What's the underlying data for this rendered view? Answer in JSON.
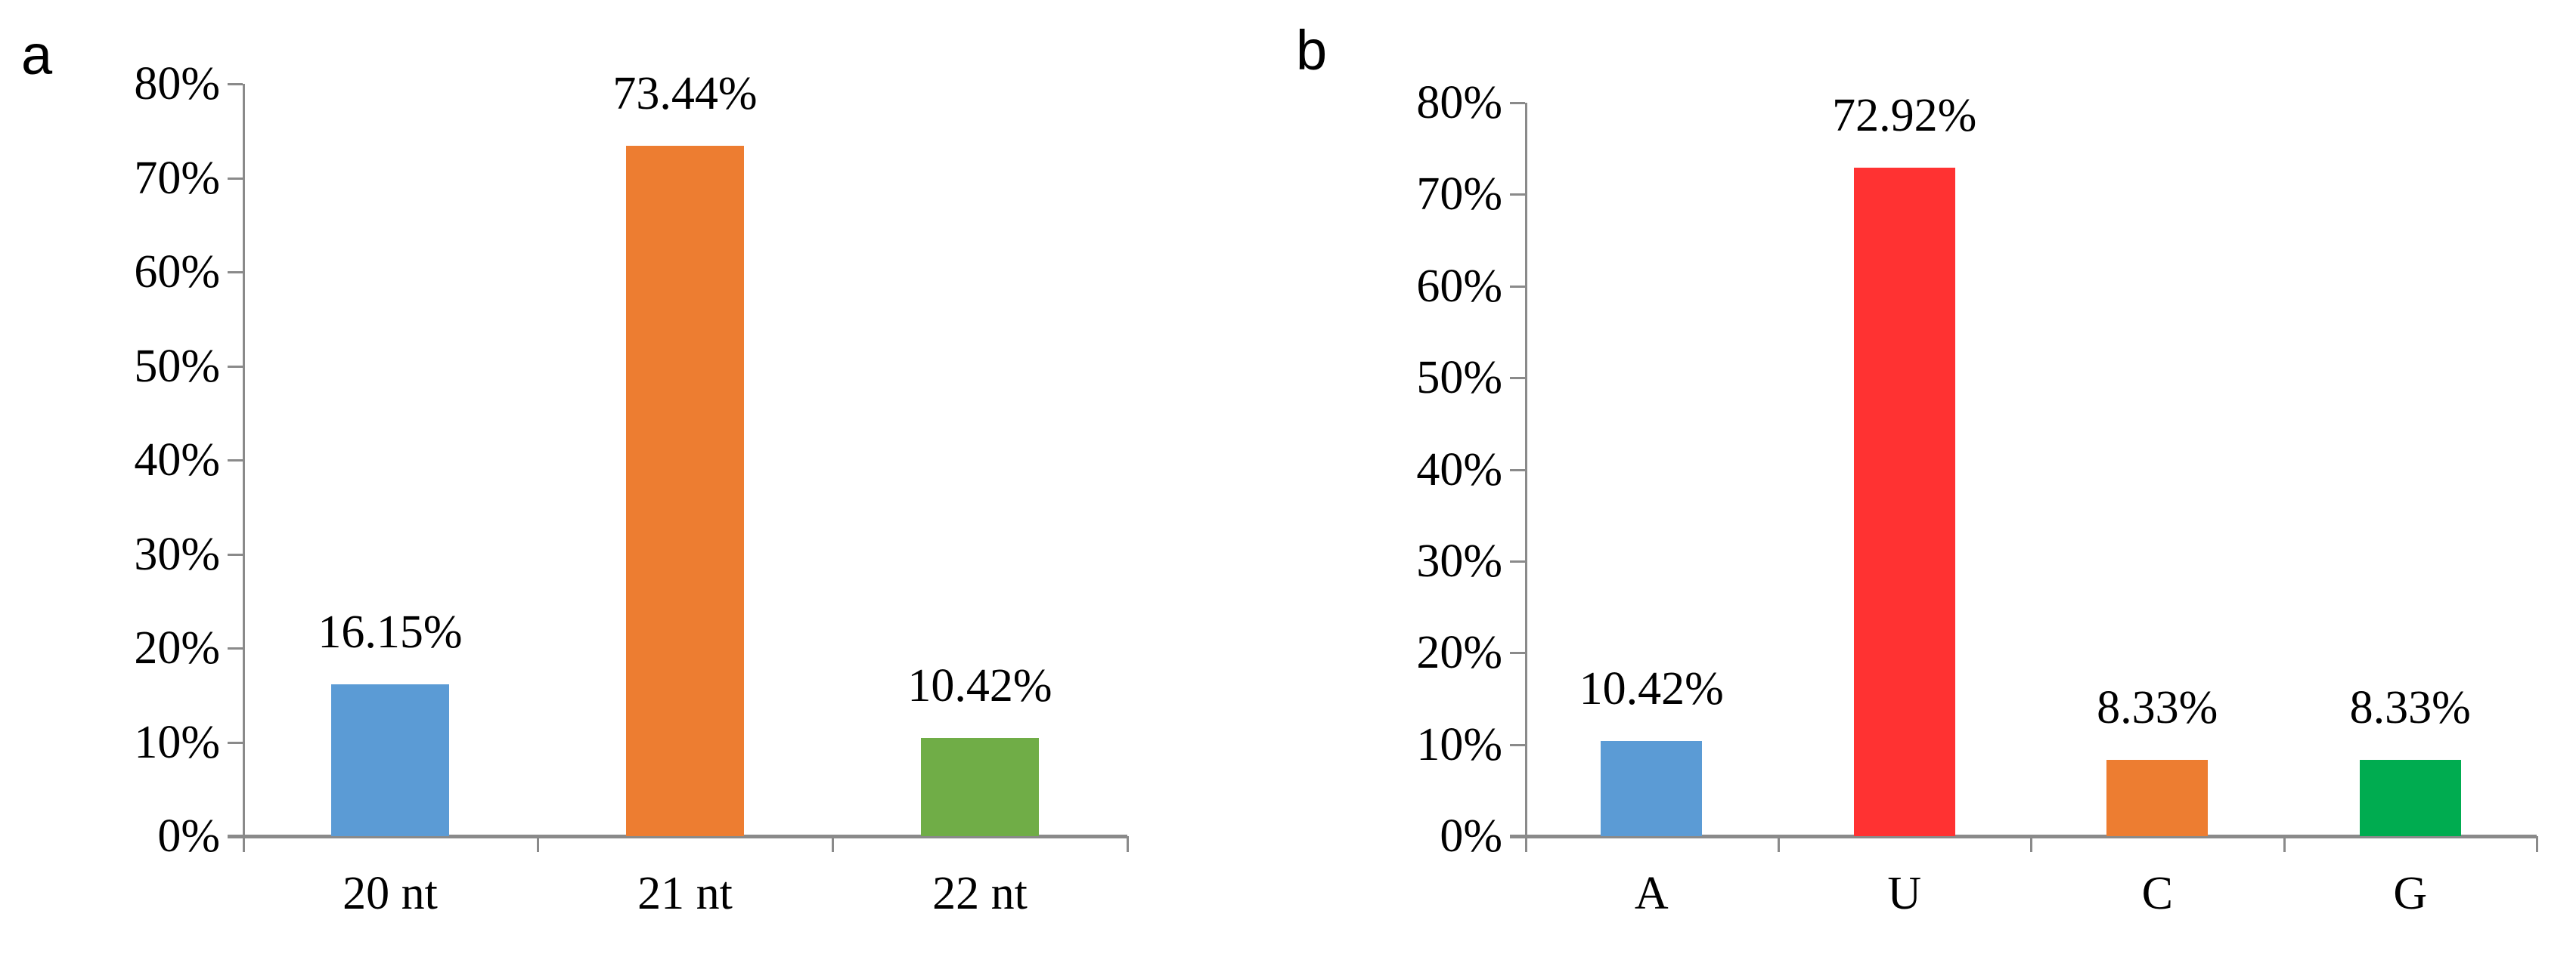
{
  "figure_background": "#ffffff",
  "axis_color": "#8a8a8a",
  "text_color": "#000000",
  "chart_data": [
    {
      "type": "bar",
      "panel_letter": "a",
      "title": "",
      "xlabel": "",
      "ylabel": "",
      "categories": [
        "20 nt",
        "21 nt",
        "22 nt"
      ],
      "values": [
        16.15,
        73.44,
        10.42
      ],
      "value_labels": [
        "16.15%",
        "73.44%",
        "10.42%"
      ],
      "bar_colors": [
        "#5B9BD5",
        "#ED7D31",
        "#70AD47"
      ],
      "ylim": [
        0,
        80
      ],
      "ytick_labels": [
        "0%",
        "10%",
        "20%",
        "30%",
        "40%",
        "50%",
        "60%",
        "70%",
        "80%"
      ],
      "grid": false,
      "legend": null
    },
    {
      "type": "bar",
      "panel_letter": "b",
      "title": "",
      "xlabel": "",
      "ylabel": "",
      "categories": [
        "A",
        "U",
        "C",
        "G"
      ],
      "values": [
        10.42,
        72.92,
        8.33,
        8.33
      ],
      "value_labels": [
        "10.42%",
        "72.92%",
        "8.33%",
        "8.33%"
      ],
      "bar_colors": [
        "#5B9BD5",
        "#FF3232",
        "#ED7D31",
        "#00AC50"
      ],
      "ylim": [
        0,
        80
      ],
      "ytick_labels": [
        "0%",
        "10%",
        "20%",
        "30%",
        "40%",
        "50%",
        "60%",
        "70%",
        "80%"
      ],
      "grid": false,
      "legend": null
    }
  ]
}
